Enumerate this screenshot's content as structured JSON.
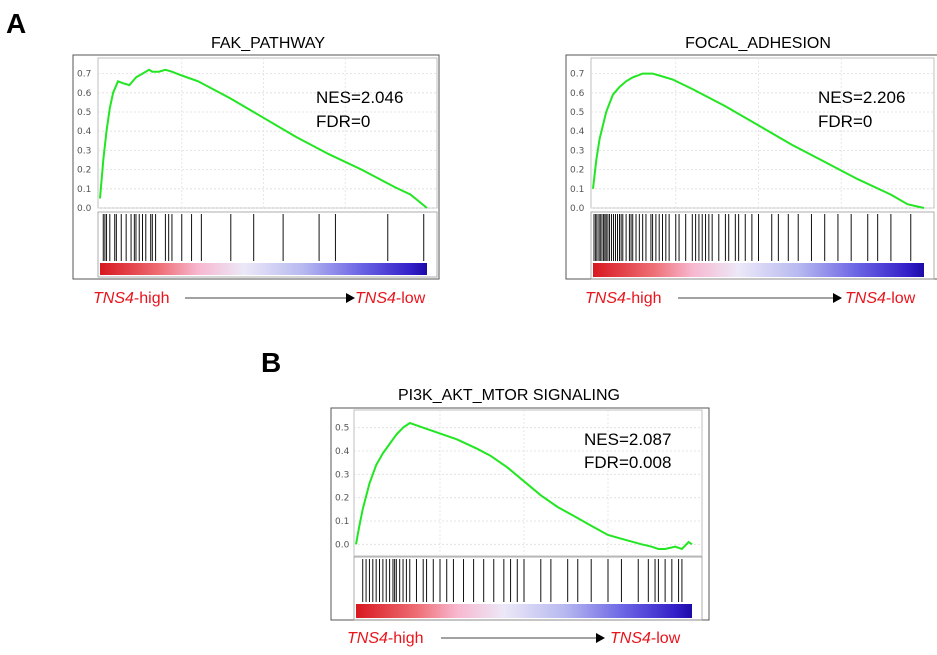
{
  "panels": {
    "a_label": "A",
    "b_label": "B"
  },
  "colors": {
    "curve": "#22e622",
    "ranking_label": "#e8141c",
    "high_end": "#d81820",
    "low_end": "#2a0cb8"
  },
  "chart_data": [
    {
      "type": "line",
      "id": "fak",
      "title": "FAK_PATHWAY",
      "nes_text": "NES=2.046",
      "fdr_text": "FDR=0",
      "x_label_high_italic": "TNS4",
      "x_label_high_suffix": "-high",
      "x_label_low_italic": "TNS4",
      "x_label_low_suffix": "-low",
      "ylim": [
        0,
        0.75
      ],
      "yticks": [
        "0.0",
        "0.1",
        "0.2",
        "0.3",
        "0.4",
        "0.5",
        "0.6",
        "0.7"
      ],
      "x": [
        0,
        0.01,
        0.02,
        0.03,
        0.04,
        0.055,
        0.07,
        0.09,
        0.11,
        0.13,
        0.15,
        0.16,
        0.18,
        0.2,
        0.22,
        0.25,
        0.3,
        0.4,
        0.5,
        0.6,
        0.7,
        0.8,
        0.9,
        0.95,
        1.0
      ],
      "y": [
        0.05,
        0.25,
        0.4,
        0.52,
        0.6,
        0.66,
        0.65,
        0.64,
        0.68,
        0.7,
        0.72,
        0.71,
        0.71,
        0.72,
        0.71,
        0.69,
        0.66,
        0.57,
        0.47,
        0.37,
        0.28,
        0.2,
        0.11,
        0.07,
        0.0
      ],
      "hits": [
        0.01,
        0.015,
        0.02,
        0.03,
        0.045,
        0.05,
        0.065,
        0.08,
        0.095,
        0.105,
        0.11,
        0.12,
        0.13,
        0.14,
        0.155,
        0.16,
        0.17,
        0.2,
        0.21,
        0.22,
        0.25,
        0.28,
        0.31,
        0.4,
        0.47,
        0.56,
        0.67,
        0.72,
        0.88,
        0.99
      ]
    },
    {
      "type": "line",
      "id": "focal",
      "title": "FOCAL_ADHESION",
      "nes_text": "NES=2.206",
      "fdr_text": "FDR=0",
      "x_label_high_italic": "TNS4",
      "x_label_high_suffix": "-high",
      "x_label_low_italic": "TNS4",
      "x_label_low_suffix": "-low",
      "ylim": [
        0,
        0.75
      ],
      "yticks": [
        "0.0",
        "0.1",
        "0.2",
        "0.3",
        "0.4",
        "0.5",
        "0.6",
        "0.7"
      ],
      "x": [
        0,
        0.01,
        0.02,
        0.04,
        0.06,
        0.08,
        0.1,
        0.12,
        0.15,
        0.18,
        0.2,
        0.24,
        0.3,
        0.4,
        0.5,
        0.6,
        0.7,
        0.8,
        0.9,
        0.95,
        1.0
      ],
      "y": [
        0.1,
        0.25,
        0.36,
        0.5,
        0.59,
        0.63,
        0.66,
        0.68,
        0.7,
        0.7,
        0.69,
        0.67,
        0.62,
        0.53,
        0.43,
        0.33,
        0.24,
        0.15,
        0.07,
        0.02,
        0.0
      ],
      "hits": [
        0.003,
        0.008,
        0.012,
        0.018,
        0.022,
        0.027,
        0.032,
        0.036,
        0.04,
        0.045,
        0.05,
        0.056,
        0.062,
        0.068,
        0.074,
        0.08,
        0.085,
        0.09,
        0.1,
        0.11,
        0.115,
        0.12,
        0.13,
        0.14,
        0.15,
        0.16,
        0.175,
        0.18,
        0.19,
        0.2,
        0.21,
        0.22,
        0.23,
        0.25,
        0.26,
        0.28,
        0.3,
        0.31,
        0.32,
        0.33,
        0.34,
        0.35,
        0.36,
        0.38,
        0.4,
        0.41,
        0.43,
        0.44,
        0.46,
        0.48,
        0.5,
        0.54,
        0.56,
        0.59,
        0.62,
        0.66,
        0.7,
        0.74,
        0.78,
        0.83,
        0.86,
        0.9,
        0.96
      ]
    },
    {
      "type": "line",
      "id": "pi3k",
      "title": "PI3K_AKT_MTOR SIGNALING",
      "nes_text": "NES=2.087",
      "fdr_text": "FDR=0.008",
      "x_label_high_italic": "TNS4",
      "x_label_high_suffix": "-high",
      "x_label_low_italic": "TNS4",
      "x_label_low_suffix": "-low",
      "ylim": [
        -0.05,
        0.55
      ],
      "yticks": [
        "0.0",
        "0.1",
        "0.2",
        "0.3",
        "0.4",
        "0.5"
      ],
      "x": [
        0,
        0.01,
        0.02,
        0.04,
        0.06,
        0.08,
        0.1,
        0.12,
        0.14,
        0.16,
        0.18,
        0.2,
        0.24,
        0.3,
        0.36,
        0.4,
        0.45,
        0.5,
        0.55,
        0.6,
        0.65,
        0.7,
        0.75,
        0.8,
        0.85,
        0.88,
        0.9,
        0.92,
        0.95,
        0.97,
        0.99,
        1.0
      ],
      "y": [
        0.0,
        0.08,
        0.15,
        0.26,
        0.34,
        0.39,
        0.43,
        0.47,
        0.5,
        0.52,
        0.51,
        0.5,
        0.48,
        0.45,
        0.41,
        0.38,
        0.33,
        0.27,
        0.21,
        0.16,
        0.12,
        0.08,
        0.04,
        0.02,
        0.0,
        -0.01,
        -0.02,
        -0.02,
        -0.01,
        -0.02,
        0.01,
        0.0
      ],
      "hits": [
        0.02,
        0.03,
        0.04,
        0.05,
        0.06,
        0.07,
        0.08,
        0.09,
        0.1,
        0.11,
        0.115,
        0.12,
        0.13,
        0.14,
        0.15,
        0.16,
        0.18,
        0.2,
        0.21,
        0.23,
        0.25,
        0.27,
        0.29,
        0.32,
        0.35,
        0.38,
        0.41,
        0.44,
        0.46,
        0.48,
        0.5,
        0.55,
        0.58,
        0.63,
        0.66,
        0.7,
        0.75,
        0.79,
        0.84,
        0.87,
        0.89,
        0.9,
        0.92,
        0.94,
        0.96,
        0.97
      ]
    }
  ]
}
